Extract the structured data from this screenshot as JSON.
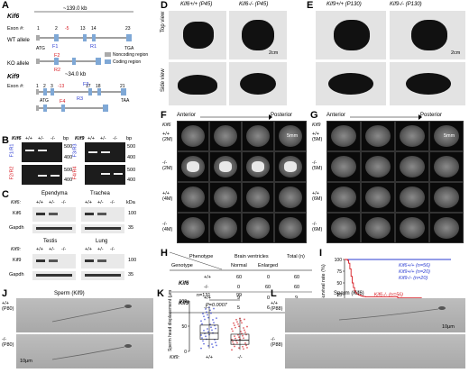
{
  "panels": {
    "A": {
      "letter": "A",
      "kif6_gene": "Kif6",
      "kif6_size": "~139.0 kb",
      "kif6_wt": "WT allele",
      "kif6_ko": "KO allele",
      "exon_no": "Exon #:",
      "kif6_exons_wt": [
        "1",
        "2",
        "13",
        "14",
        "23"
      ],
      "kif6_exons_ko": [
        "1",
        "2",
        "14",
        "23"
      ],
      "kif6_primers": [
        "F1",
        "R1",
        "F2",
        "R2"
      ],
      "atg": "ATG",
      "tga": "TGA",
      "taa": "TAA",
      "legend_noncoding": "Noncoding region",
      "legend_coding": "Coding region",
      "kif9_gene": "Kif9",
      "kif9_size": "~34.0 kb",
      "kif9_exons_wt": [
        "1",
        "2",
        "3",
        "17",
        "18",
        "21"
      ],
      "kif9_exons_ko": [
        "1",
        "2",
        "18",
        "21"
      ],
      "kif9_primers": [
        "F3",
        "R3",
        "F4",
        "R4"
      ],
      "kif9_deletion": "-13",
      "kif6_deletion": "-5"
    },
    "B": {
      "letter": "B",
      "kif6_gene": "Kif6",
      "kif9_gene": "Kif9",
      "genotypes": [
        "+/+",
        "+/-",
        "-/-"
      ],
      "bp_unit": "bp",
      "ladder": [
        "500",
        "400",
        "500",
        "400"
      ],
      "primer_labels": [
        "F1/R1",
        "F2/R2",
        "F3/R3",
        "F4/R4"
      ]
    },
    "C": {
      "letter": "C",
      "tissues": [
        "Ependyma",
        "Trachea",
        "Testis",
        "Lung"
      ],
      "genotype_label_kif6": "Kif6:",
      "genotype_label_kif9": "Kif9:",
      "genotypes": [
        "+/+",
        "+/-",
        "-/-"
      ],
      "proteins": [
        "Kif6",
        "Gapdh",
        "Kif9",
        "Gapdh"
      ],
      "kda": "kDa",
      "markers": [
        "100",
        "35",
        "100",
        "35"
      ]
    },
    "D": {
      "letter": "D",
      "titles": [
        "Kif6+/+ (P45)",
        "Kif6-/- (P45)"
      ],
      "rows": [
        "Top view",
        "Side view"
      ],
      "scale": "2cm"
    },
    "E": {
      "letter": "E",
      "titles": [
        "Kif9+/+ (P130)",
        "Kif9-/- (P130)"
      ],
      "scale": "2cm"
    },
    "F": {
      "letter": "F",
      "gene": "Kif6",
      "axis_left": "Anterior",
      "axis_right": "Posterior",
      "rows": [
        "+/+ (2M)",
        "-/- (2M)",
        "+/+ (4M)",
        "-/- (4M)"
      ],
      "scale": "5mm"
    },
    "G": {
      "letter": "G",
      "gene": "Kif9",
      "axis_left": "Anterior",
      "axis_right": "Posterior",
      "rows": [
        "+/+ (5M)",
        "-/- (5M)",
        "+/+ (6M)",
        "-/- (6M)"
      ],
      "scale": "5mm"
    },
    "H": {
      "letter": "H",
      "header_phenotype": "Phenotype",
      "header_genotype": "Genotype",
      "header_brain": "Brain ventricles",
      "header_normal": "Normal",
      "header_enlarged": "Enlarged",
      "header_total": "Total (n)",
      "rows": [
        {
          "gene": "Kif6",
          "geno": "+/+",
          "normal": "60",
          "enlarged": "0",
          "total": "60"
        },
        {
          "gene": "",
          "geno": "-/-",
          "normal": "0",
          "enlarged": "60",
          "total": "60"
        },
        {
          "gene": "Kif9",
          "geno": "+/+",
          "normal": "9",
          "enlarged": "0",
          "total": "9"
        },
        {
          "gene": "",
          "geno": "-/-",
          "normal": "5",
          "enlarged": "6",
          "total": "11"
        }
      ]
    },
    "I": {
      "letter": "I",
      "ylabel": "Survival rate (%)",
      "xlabel": "(day)",
      "legend": [
        {
          "label": "Kif6+/+ (n=56)",
          "color": "#2a3bd1"
        },
        {
          "label": "Kif9+/+ (n=20)",
          "color": "#2a3bd1"
        },
        {
          "label": "Kif9-/- (n=20)",
          "color": "#2a3bd1"
        },
        {
          "label": "Kif6-/- (n=56)",
          "color": "#d71920"
        }
      ]
    },
    "J": {
      "letter": "J",
      "title": "Sperm (Kif9)",
      "rows": [
        "+/+ (P80)",
        "-/- (P80)"
      ],
      "scale": "10μm"
    },
    "K": {
      "letter": "K",
      "n_labels": [
        "n=131",
        "99"
      ],
      "pvalue": "P=0.0007",
      "ylabel": "Sperm head displacement (μm)",
      "genotype_prefix": "Kif9:",
      "categories": [
        "+/+",
        "-/-"
      ]
    },
    "L": {
      "letter": "L",
      "title": "Sperm (Kif6)",
      "rows": [
        "+/+ (P88)",
        "-/- (P88)"
      ],
      "scale": "10μm"
    }
  },
  "chart_data": [
    {
      "type": "line",
      "title": "",
      "xlabel": "(day)",
      "ylabel": "Survival rate (%)",
      "xlim": [
        0,
        360
      ],
      "ylim": [
        0,
        100
      ],
      "xticks": [
        0,
        60,
        120,
        180,
        240,
        300,
        360
      ],
      "yticks": [
        0,
        25,
        50,
        75,
        100
      ],
      "series": [
        {
          "name": "Kif6+/+ (n=56)",
          "color": "#2a3bd1",
          "x": [
            0,
            360
          ],
          "y": [
            100,
            100
          ]
        },
        {
          "name": "Kif9+/+ (n=20)",
          "color": "#2a3bd1",
          "x": [
            0,
            360
          ],
          "y": [
            100,
            100
          ]
        },
        {
          "name": "Kif9-/- (n=20)",
          "color": "#2a3bd1",
          "x": [
            0,
            360
          ],
          "y": [
            100,
            100
          ]
        },
        {
          "name": "Kif6-/- (n=56)",
          "color": "#d71920",
          "x": [
            0,
            10,
            14,
            18,
            22,
            26,
            30,
            34,
            38,
            42,
            48,
            55,
            62,
            70,
            80,
            100,
            140,
            180,
            230,
            260,
            300
          ],
          "y": [
            100,
            98,
            92,
            80,
            64,
            50,
            40,
            33,
            29,
            26,
            24,
            22,
            21,
            20,
            20,
            20,
            20,
            18,
            18,
            16,
            16
          ]
        }
      ]
    },
    {
      "type": "box",
      "title": "",
      "xlabel": "",
      "ylabel": "Sperm head displacement (μm)",
      "categories": [
        "+/+",
        "-/-"
      ],
      "ylim": [
        0,
        100
      ],
      "yticks": [
        0,
        50,
        100
      ],
      "series": [
        {
          "name": "+/+",
          "color": "#2a3bd1",
          "median": 36,
          "q1": 24,
          "q3": 52,
          "whisker_low": 6,
          "whisker_high": 88
        },
        {
          "name": "-/-",
          "color": "#d71920",
          "median": 22,
          "q1": 14,
          "q3": 34,
          "whisker_low": 3,
          "whisker_high": 66
        }
      ]
    }
  ]
}
